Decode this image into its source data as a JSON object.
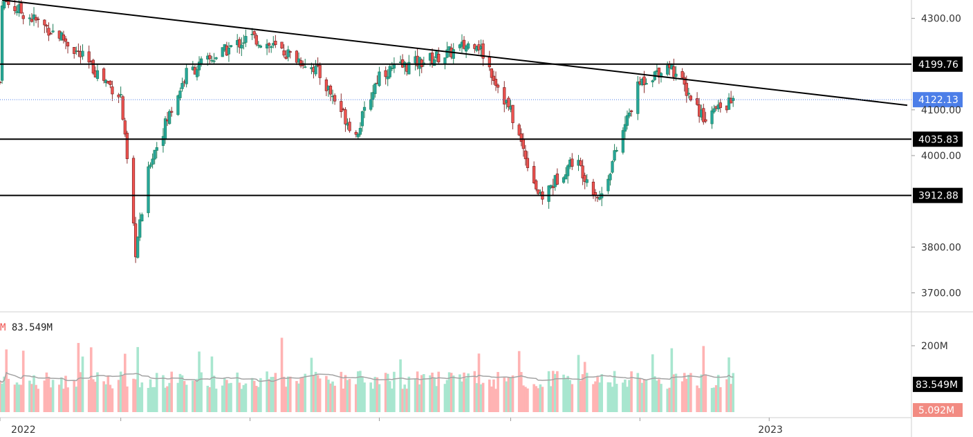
{
  "chart_data": {
    "type": "candlestick",
    "price_axis": {
      "ylim": [
        3660,
        4340
      ],
      "tick_values": [
        3700,
        3800,
        4000,
        4100,
        4300
      ],
      "tick_labels": [
        "3700.00",
        "3800.00",
        "4000.00",
        "4100.00",
        "4300.00"
      ],
      "tick_partially_hidden": "3900"
    },
    "time_axis": {
      "tick_labels": [
        "2022",
        "2023"
      ],
      "range": [
        "2022-01-03",
        "2023-02-28"
      ],
      "last_bar_date": "2022-12-15"
    },
    "horizontal_levels": [
      {
        "value": 4199.76,
        "label": "4199.76",
        "color": "#000000"
      },
      {
        "value": 4035.83,
        "label": "4035.83",
        "color": "#000000"
      },
      {
        "value": 3912.88,
        "label": "3912.88",
        "color": "#000000"
      }
    ],
    "current_price": {
      "value": 4122.13,
      "label": "4122.13",
      "color": "#4c7ee8"
    },
    "trendline": {
      "from": {
        "date": "2022-01-04",
        "value": 4340
      },
      "to": {
        "date": "2022-12-31",
        "value": 4110
      }
    },
    "price_anchors": [
      {
        "date": "2022-01-03",
        "close": 4160
      },
      {
        "date": "2022-01-04",
        "close": 4340
      },
      {
        "date": "2022-02-01",
        "close": 4260
      },
      {
        "date": "2022-03-01",
        "close": 4130
      },
      {
        "date": "2022-03-08",
        "close": 3790
      },
      {
        "date": "2022-03-15",
        "close": 3990
      },
      {
        "date": "2022-04-01",
        "close": 4180
      },
      {
        "date": "2022-05-01",
        "close": 4260
      },
      {
        "date": "2022-05-20",
        "close": 4220
      },
      {
        "date": "2022-06-01",
        "close": 4190
      },
      {
        "date": "2022-06-20",
        "close": 4045
      },
      {
        "date": "2022-07-01",
        "close": 4180
      },
      {
        "date": "2022-08-01",
        "close": 4220
      },
      {
        "date": "2022-08-16",
        "close": 4250
      },
      {
        "date": "2022-09-01",
        "close": 4095
      },
      {
        "date": "2022-09-15",
        "close": 3905
      },
      {
        "date": "2022-10-01",
        "close": 3995
      },
      {
        "date": "2022-10-13",
        "close": 3905
      },
      {
        "date": "2022-11-01",
        "close": 4160
      },
      {
        "date": "2022-11-15",
        "close": 4200
      },
      {
        "date": "2022-12-01",
        "close": 4085
      },
      {
        "date": "2022-12-15",
        "close": 4120
      }
    ],
    "volume": {
      "label_prefix": "M",
      "label_value": "83.549M",
      "axis_tick": "200M",
      "last_value_label": "83.549M",
      "marker_label": "5.092M",
      "marker_color": "#f28b82",
      "moving_average_color": "#a3a3a3"
    },
    "colors": {
      "up": "#26a69a",
      "down": "#ef5350",
      "vol_up": "#a8e6cf",
      "vol_down": "#ffb3b3"
    }
  }
}
